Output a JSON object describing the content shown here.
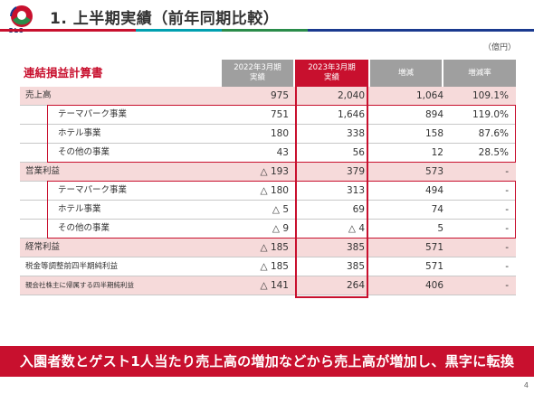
{
  "header": {
    "title": "1. 上半期実績（前年同期比較）",
    "logo_text": "OLC",
    "logo_colors": [
      "#c8102e",
      "#2a8c4a",
      "#1a3a8f"
    ]
  },
  "unit": "（億円）",
  "table": {
    "title": "連結損益計算書",
    "columns": [
      {
        "line1": "2022年3月期",
        "line2": "実績"
      },
      {
        "line1": "2023年3月期",
        "line2": "実績"
      },
      {
        "line1": "増減",
        "line2": ""
      },
      {
        "line1": "増減率",
        "line2": ""
      }
    ],
    "rows": [
      {
        "label": "売上高",
        "v1": "975",
        "v2": "2,040",
        "v3": "1,064",
        "v4": "109.1%"
      },
      {
        "label": "テーマパーク事業",
        "v1": "751",
        "v2": "1,646",
        "v3": "894",
        "v4": "119.0%"
      },
      {
        "label": "ホテル事業",
        "v1": "180",
        "v2": "338",
        "v3": "158",
        "v4": "87.6%"
      },
      {
        "label": "その他の事業",
        "v1": "43",
        "v2": "56",
        "v3": "12",
        "v4": "28.5%"
      },
      {
        "label": "営業利益",
        "v1": "△ 193",
        "v2": "379",
        "v3": "573",
        "v4": "-"
      },
      {
        "label": "テーマパーク事業",
        "v1": "△ 180",
        "v2": "313",
        "v3": "494",
        "v4": "-"
      },
      {
        "label": "ホテル事業",
        "v1": "△ 5",
        "v2": "69",
        "v3": "74",
        "v4": "-"
      },
      {
        "label": "その他の事業",
        "v1": "△ 9",
        "v2": "△ 4",
        "v3": "5",
        "v4": "-"
      },
      {
        "label": "経常利益",
        "v1": "△ 185",
        "v2": "385",
        "v3": "571",
        "v4": "-"
      },
      {
        "label": "税金等調整前四半期純利益",
        "v1": "△ 185",
        "v2": "385",
        "v3": "571",
        "v4": "-"
      },
      {
        "label": "親会社株主に帰属する四半期純利益",
        "v1": "△ 141",
        "v2": "264",
        "v3": "406",
        "v4": "-"
      }
    ]
  },
  "banner": "入園者数とゲスト1人当たり売上高の増加などから売上高が増加し、黒字に転換",
  "page_number": "4",
  "colors": {
    "accent": "#c8102e",
    "header_gray": "#9f9f9f",
    "row_pink": "#f6dada"
  }
}
